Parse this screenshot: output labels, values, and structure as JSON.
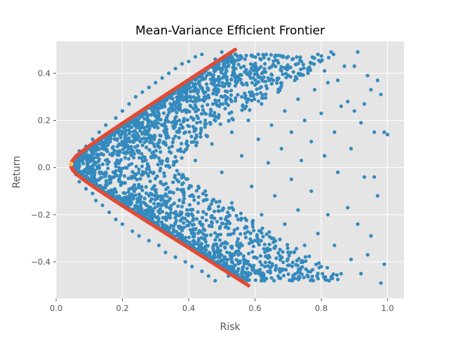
{
  "chart_data": {
    "type": "scatter",
    "title": "Mean-Variance Efficient Frontier",
    "xlabel": "Risk",
    "ylabel": "Return",
    "xlim": [
      0.0,
      1.05
    ],
    "ylim": [
      -0.555,
      0.535
    ],
    "xticks": [
      0.0,
      0.2,
      0.4,
      0.6,
      0.8,
      1.0
    ],
    "yticks": [
      -0.4,
      -0.2,
      0.0,
      0.2,
      0.4
    ],
    "xtick_labels": [
      "0.0",
      "0.2",
      "0.4",
      "0.6",
      "0.8",
      "1.0"
    ],
    "ytick_labels": [
      "−0.4",
      "−0.2",
      "0.0",
      "0.2",
      "0.4"
    ],
    "grid": true,
    "style": "ggplot",
    "colors": {
      "background": "#e5e5e5",
      "grid": "#ffffff",
      "portfolios": "#348abd",
      "frontier": "#e24a33",
      "min_variance": "#fbc15e"
    },
    "series": [
      {
        "kind": "random-portfolios",
        "color": "#348abd",
        "points": [
          [
            0.05,
            0.02
          ],
          [
            0.06,
            0.05
          ],
          [
            0.06,
            -0.03
          ],
          [
            0.07,
            0.01
          ],
          [
            0.07,
            0.07
          ],
          [
            0.07,
            -0.06
          ],
          [
            0.08,
            0.03
          ],
          [
            0.08,
            -0.02
          ],
          [
            0.09,
            0.09
          ],
          [
            0.09,
            -0.09
          ],
          [
            0.1,
            0.05
          ],
          [
            0.1,
            -0.05
          ],
          [
            0.11,
            0.12
          ],
          [
            0.11,
            -0.11
          ],
          [
            0.12,
            0.02
          ],
          [
            0.12,
            -0.14
          ],
          [
            0.13,
            0.15
          ],
          [
            0.13,
            -0.08
          ],
          [
            0.14,
            0.09
          ],
          [
            0.14,
            -0.16
          ],
          [
            0.15,
            0.18
          ],
          [
            0.15,
            -0.02
          ],
          [
            0.16,
            0.13
          ],
          [
            0.16,
            -0.19
          ],
          [
            0.17,
            0.06
          ],
          [
            0.17,
            -0.12
          ],
          [
            0.18,
            0.21
          ],
          [
            0.18,
            -0.22
          ],
          [
            0.19,
            0.1
          ],
          [
            0.19,
            -0.05
          ],
          [
            0.2,
            0.24
          ],
          [
            0.2,
            -0.24
          ],
          [
            0.21,
            0.16
          ],
          [
            0.21,
            -0.15
          ],
          [
            0.22,
            0.27
          ],
          [
            0.22,
            0.01
          ],
          [
            0.23,
            -0.27
          ],
          [
            0.23,
            0.19
          ],
          [
            0.24,
            0.3
          ],
          [
            0.24,
            -0.09
          ],
          [
            0.25,
            0.07
          ],
          [
            0.25,
            -0.29
          ],
          [
            0.26,
            0.32
          ],
          [
            0.26,
            -0.19
          ],
          [
            0.27,
            0.24
          ],
          [
            0.27,
            -0.02
          ],
          [
            0.28,
            0.34
          ],
          [
            0.28,
            -0.31
          ],
          [
            0.29,
            0.13
          ],
          [
            0.29,
            -0.23
          ],
          [
            0.3,
            0.36
          ],
          [
            0.3,
            0.28
          ],
          [
            0.31,
            -0.33
          ],
          [
            0.31,
            0.04
          ],
          [
            0.32,
            0.38
          ],
          [
            0.32,
            -0.13
          ],
          [
            0.33,
            0.2
          ],
          [
            0.33,
            -0.36
          ],
          [
            0.34,
            0.4
          ],
          [
            0.34,
            -0.26
          ],
          [
            0.35,
            0.31
          ],
          [
            0.35,
            0.09
          ],
          [
            0.36,
            0.42
          ],
          [
            0.36,
            -0.38
          ],
          [
            0.37,
            -0.06
          ],
          [
            0.37,
            0.25
          ],
          [
            0.38,
            0.44
          ],
          [
            0.38,
            -0.3
          ],
          [
            0.39,
            0.15
          ],
          [
            0.39,
            -0.4
          ],
          [
            0.4,
            0.45
          ],
          [
            0.4,
            0.35
          ],
          [
            0.41,
            -0.18
          ],
          [
            0.41,
            -0.42
          ],
          [
            0.42,
            0.47
          ],
          [
            0.42,
            0.03
          ],
          [
            0.43,
            -0.35
          ],
          [
            0.43,
            0.3
          ],
          [
            0.44,
            0.48
          ],
          [
            0.44,
            -0.44
          ],
          [
            0.45,
            0.2
          ],
          [
            0.45,
            -0.1
          ],
          [
            0.46,
            0.4
          ],
          [
            0.46,
            -0.46
          ],
          [
            0.47,
            -0.25
          ],
          [
            0.47,
            0.1
          ],
          [
            0.48,
            0.46
          ],
          [
            0.48,
            -0.48
          ],
          [
            0.49,
            0.33
          ],
          [
            0.49,
            -0.38
          ],
          [
            0.5,
            0.49
          ],
          [
            0.5,
            -0.02
          ],
          [
            0.51,
            0.25
          ],
          [
            0.51,
            -0.32
          ],
          [
            0.52,
            0.43
          ],
          [
            0.52,
            -0.46
          ],
          [
            0.53,
            0.15
          ],
          [
            0.53,
            -0.15
          ],
          [
            0.54,
            0.48
          ],
          [
            0.55,
            0.38
          ],
          [
            0.55,
            -0.4
          ],
          [
            0.56,
            0.3
          ],
          [
            0.56,
            0.05
          ],
          [
            0.57,
            0.46
          ],
          [
            0.57,
            -0.28
          ],
          [
            0.58,
            0.2
          ],
          [
            0.58,
            -0.45
          ],
          [
            0.59,
            0.42
          ],
          [
            0.59,
            -0.08
          ],
          [
            0.6,
            0.35
          ],
          [
            0.6,
            -0.38
          ],
          [
            0.61,
            0.48
          ],
          [
            0.61,
            0.12
          ],
          [
            0.62,
            -0.2
          ],
          [
            0.62,
            0.27
          ],
          [
            0.63,
            0.44
          ],
          [
            0.63,
            -0.42
          ],
          [
            0.64,
            0.02
          ],
          [
            0.64,
            0.38
          ],
          [
            0.65,
            -0.3
          ],
          [
            0.65,
            0.18
          ],
          [
            0.66,
            0.47
          ],
          [
            0.66,
            -0.12
          ],
          [
            0.67,
            0.32
          ],
          [
            0.67,
            -0.46
          ],
          [
            0.68,
            0.08
          ],
          [
            0.68,
            0.41
          ],
          [
            0.69,
            -0.24
          ],
          [
            0.69,
            0.24
          ],
          [
            0.7,
            0.47
          ],
          [
            0.7,
            -0.36
          ],
          [
            0.71,
            0.15
          ],
          [
            0.71,
            -0.05
          ],
          [
            0.72,
            0.37
          ],
          [
            0.72,
            -0.47
          ],
          [
            0.73,
            0.29
          ],
          [
            0.73,
            -0.18
          ],
          [
            0.74,
            0.45
          ],
          [
            0.74,
            0.03
          ],
          [
            0.75,
            -0.33
          ],
          [
            0.75,
            0.2
          ],
          [
            0.76,
            0.4
          ],
          [
            0.76,
            -0.44
          ],
          [
            0.77,
            0.11
          ],
          [
            0.77,
            -0.1
          ],
          [
            0.78,
            0.33
          ],
          [
            0.79,
            0.48
          ],
          [
            0.79,
            -0.28
          ],
          [
            0.8,
            0.23
          ],
          [
            0.8,
            -0.42
          ],
          [
            0.81,
            0.41
          ],
          [
            0.81,
            0.05
          ],
          [
            0.82,
            -0.2
          ],
          [
            0.82,
            0.36
          ],
          [
            0.83,
            0.49
          ],
          [
            0.83,
            -0.47
          ],
          [
            0.84,
            0.15
          ],
          [
            0.84,
            -0.33
          ],
          [
            0.85,
            0.37
          ],
          [
            0.85,
            -0.02
          ],
          [
            0.86,
            0.26
          ],
          [
            0.86,
            -0.45
          ],
          [
            0.87,
            0.43
          ],
          [
            0.88,
            0.28
          ],
          [
            0.88,
            -0.17
          ],
          [
            0.89,
            0.08
          ],
          [
            0.89,
            -0.39
          ],
          [
            0.9,
            0.43
          ],
          [
            0.9,
            0.24
          ],
          [
            0.91,
            -0.24
          ],
          [
            0.91,
            0.49
          ],
          [
            0.92,
            0.19
          ],
          [
            0.92,
            -0.45
          ],
          [
            0.93,
            0.27
          ],
          [
            0.93,
            -0.04
          ],
          [
            0.94,
            0.39
          ],
          [
            0.94,
            -0.37
          ],
          [
            0.95,
            0.33
          ],
          [
            0.95,
            -0.29
          ],
          [
            0.96,
            -0.04
          ],
          [
            0.96,
            0.15
          ],
          [
            0.97,
            -0.12
          ],
          [
            0.97,
            0.37
          ],
          [
            0.98,
            0.31
          ],
          [
            0.98,
            -0.49
          ],
          [
            0.99,
            0.15
          ],
          [
            0.99,
            -0.41
          ],
          [
            1.0,
            0.14
          ]
        ]
      },
      {
        "kind": "efficient-frontier",
        "color": "#e24a33",
        "risk_min": 0.045,
        "return_at_min": 0.01,
        "upper_end": [
          0.54,
          0.5
        ],
        "lower_end": [
          0.58,
          -0.5
        ]
      },
      {
        "kind": "min-variance-point",
        "color": "#fbc15e",
        "point": [
          0.045,
          0.015
        ]
      }
    ]
  }
}
